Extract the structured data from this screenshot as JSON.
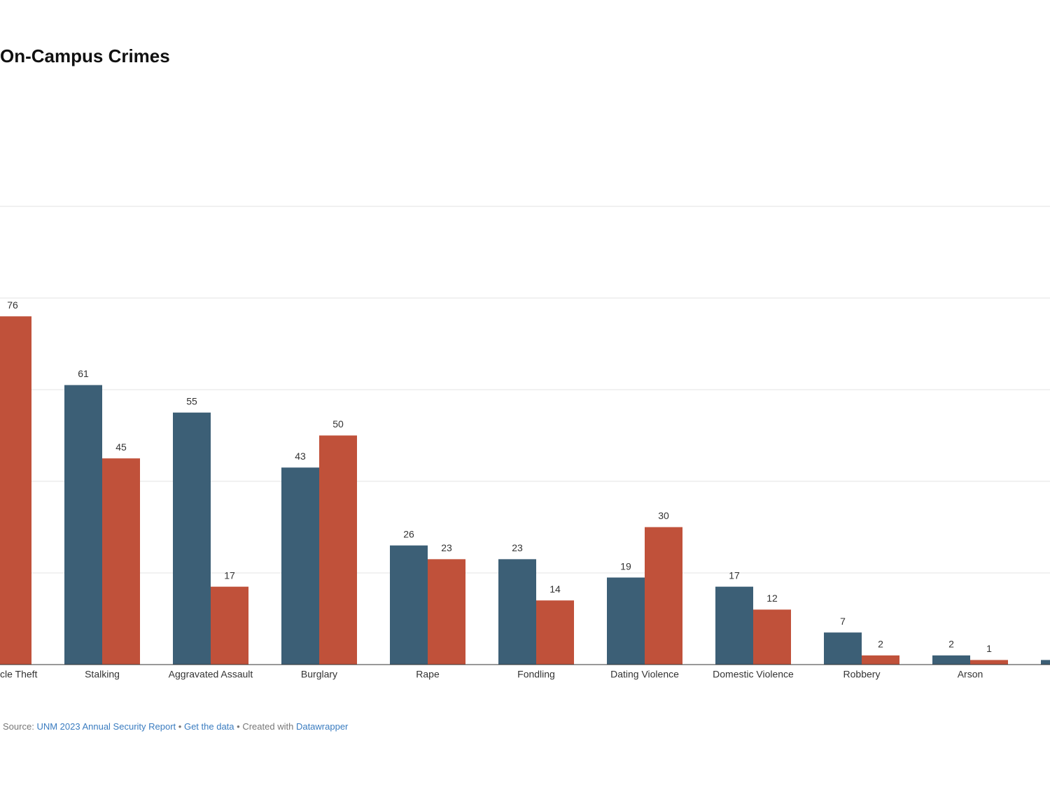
{
  "chart_data": {
    "type": "bar",
    "title": "On-Campus Crimes",
    "categories": [
      "cle Theft",
      "Stalking",
      "Aggravated Assault",
      "Burglary",
      "Rape",
      "Fondling",
      "Dating Violence",
      "Domestic Violence",
      "Robbery",
      "Arson",
      null
    ],
    "series": [
      {
        "color": "#3c5f76",
        "values": [
          null,
          61,
          55,
          43,
          26,
          23,
          19,
          17,
          7,
          2,
          1
        ]
      },
      {
        "color": "#c0513a",
        "values": [
          76,
          45,
          17,
          50,
          23,
          14,
          30,
          12,
          2,
          1,
          null
        ]
      }
    ],
    "ylim": [
      0,
      100
    ],
    "yticks": [
      0,
      20,
      40,
      60,
      80,
      100
    ],
    "grid": true,
    "footer": {
      "source_label": "Source:",
      "source": "UNM 2023 Annual Security Report",
      "separator": "•",
      "get_data": "Get the data",
      "created_with": "Created with",
      "tool": "Datawrapper"
    }
  }
}
